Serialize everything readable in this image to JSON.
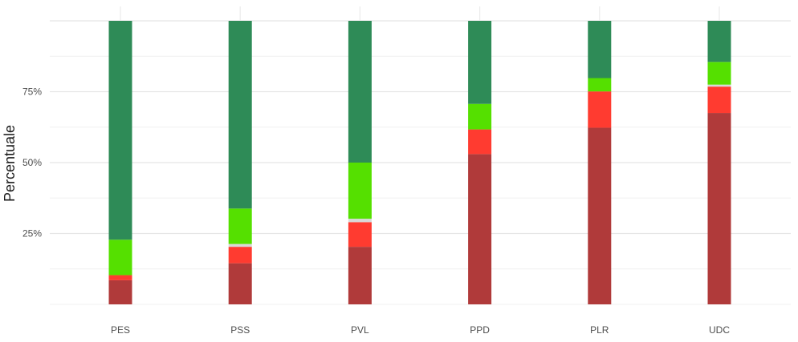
{
  "chart_data": {
    "type": "bar",
    "stacked": true,
    "ylabel": "Percentuale",
    "xlabel": "",
    "ylim": [
      0,
      100
    ],
    "y_ticks": [
      25,
      50,
      75
    ],
    "y_tick_labels": [
      "25%",
      "50%",
      "75%"
    ],
    "grid": true,
    "legend": "none",
    "categories": [
      "PES",
      "PSS",
      "PVL",
      "PPD",
      "PLR",
      "UDC"
    ],
    "series": [
      {
        "color": "#b03a3a",
        "values": [
          8.5,
          14.5,
          20.3,
          53.0,
          62.3,
          67.5
        ]
      },
      {
        "color": "#ff3b30",
        "values": [
          1.8,
          5.8,
          8.7,
          8.7,
          12.8,
          9.3
        ]
      },
      {
        "color": "#d9d9d9",
        "values": [
          0.0,
          1.0,
          1.2,
          0.0,
          0.0,
          0.7
        ]
      },
      {
        "color": "#55e000",
        "values": [
          12.5,
          12.5,
          19.8,
          9.0,
          4.7,
          8.0
        ]
      },
      {
        "color": "#2e8b57",
        "values": [
          77.2,
          66.2,
          50.0,
          29.3,
          20.2,
          14.5
        ]
      }
    ]
  }
}
